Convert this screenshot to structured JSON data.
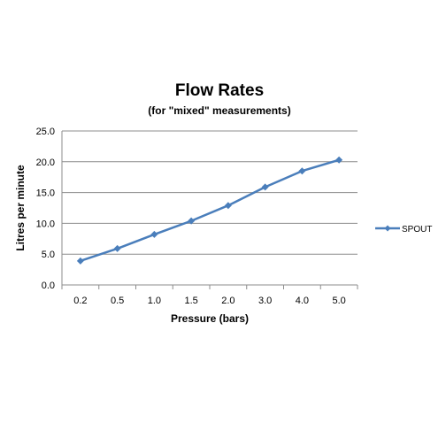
{
  "chart_data": {
    "type": "line",
    "title": "Flow Rates",
    "subtitle": "(for \"mixed\"  measurements)",
    "xlabel": "Pressure (bars)",
    "ylabel": "Litres per minute",
    "categories": [
      "0.2",
      "0.5",
      "1.0",
      "1.5",
      "2.0",
      "3.0",
      "4.0",
      "5.0"
    ],
    "series": [
      {
        "name": "SPOUT",
        "values": [
          3.9,
          5.9,
          8.2,
          10.4,
          12.9,
          15.9,
          18.5,
          20.3
        ],
        "color": "#4a7ebb"
      }
    ],
    "ylim": [
      0,
      25
    ],
    "yticks": [
      "0.0",
      "5.0",
      "10.0",
      "15.0",
      "20.0",
      "25.0"
    ],
    "grid": true,
    "legend_position": "right"
  }
}
